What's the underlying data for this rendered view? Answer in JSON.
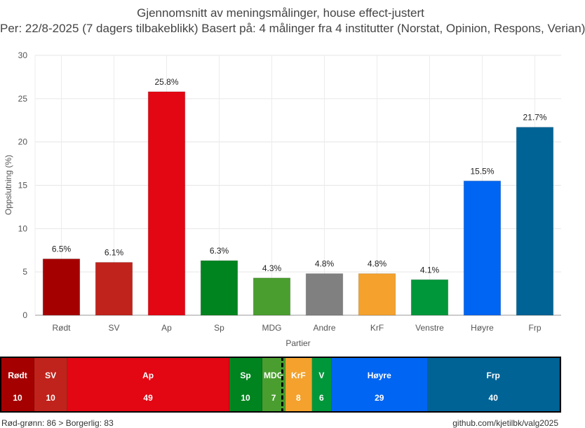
{
  "chart_data": {
    "type": "bar",
    "title": "Gjennomsnitt av meningsmålinger, house effect-justert",
    "subtitle": "Per: 22/8-2025 (7 dagers tilbakeblikk) Basert på: 4 målinger fra 4 institutter (Norstat, Opinion, Respons, Verian)",
    "xlabel": "Partier",
    "ylabel": "Oppslutning (%)",
    "ylim": [
      0,
      30
    ],
    "yticks": [
      "0",
      "5",
      "10",
      "15",
      "20",
      "25",
      "30"
    ],
    "grid": true,
    "categories": [
      "Rødt",
      "SV",
      "Ap",
      "Sp",
      "MDG",
      "Andre",
      "KrF",
      "Venstre",
      "Høyre",
      "Frp"
    ],
    "values": [
      6.5,
      6.1,
      25.8,
      6.3,
      4.3,
      4.8,
      4.8,
      4.1,
      15.5,
      21.7
    ],
    "data_labels": [
      "6.5%",
      "6.1%",
      "25.8%",
      "6.3%",
      "4.3%",
      "4.8%",
      "4.8%",
      "4.1%",
      "15.5%",
      "21.7%"
    ],
    "colors": [
      "#a50000",
      "#c0231b",
      "#e30613",
      "#00841f",
      "#4a9e2f",
      "#808080",
      "#f4a22d",
      "#00973a",
      "#0065f2",
      "#006396"
    ]
  },
  "seats": [
    {
      "party": "Rødt",
      "seats": 10,
      "label": "10",
      "color": "#a50000"
    },
    {
      "party": "SV",
      "seats": 10,
      "label": "10",
      "color": "#c0231b"
    },
    {
      "party": "Ap",
      "seats": 49,
      "label": "49",
      "color": "#e30613"
    },
    {
      "party": "Sp",
      "seats": 10,
      "label": "10",
      "color": "#00841f"
    },
    {
      "party": "MDG",
      "seats": 7,
      "label": "7",
      "color": "#4a9e2f"
    },
    {
      "party": "KrF",
      "seats": 8,
      "label": "8",
      "color": "#f4a22d"
    },
    {
      "party": "V",
      "seats": 6,
      "label": "6",
      "color": "#00973a"
    },
    {
      "party": "Høyre",
      "seats": 29,
      "label": "29",
      "color": "#0065f2"
    },
    {
      "party": "Frp",
      "seats": 40,
      "label": "40",
      "color": "#006396"
    }
  ],
  "footer": {
    "summary": "Rød-grønn: 86 > Borgerlig: 83",
    "source": "github.com/kjetilbk/valg2025"
  }
}
